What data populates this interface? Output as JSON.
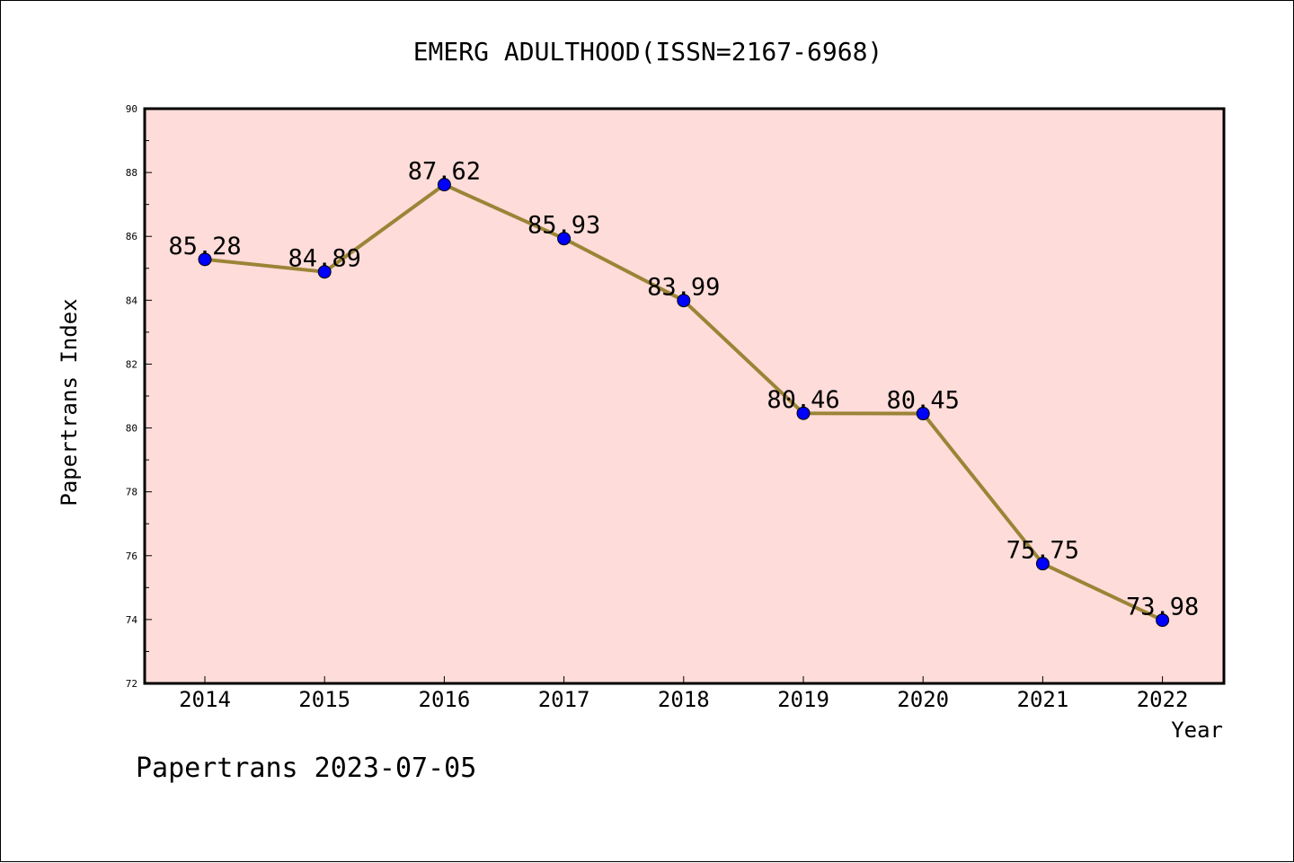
{
  "chart_data": {
    "type": "line",
    "title": "EMERG ADULTHOOD(ISSN=2167-6968)",
    "xlabel": "Year",
    "ylabel": "Papertrans Index",
    "categories": [
      "2014",
      "2015",
      "2016",
      "2017",
      "2018",
      "2019",
      "2020",
      "2021",
      "2022"
    ],
    "series": [
      {
        "values": [
          85.28,
          84.89,
          87.62,
          85.93,
          83.99,
          80.46,
          80.45,
          75.75,
          73.98
        ],
        "labels": [
          "85.28",
          "84.89",
          "87.62",
          "85.93",
          "83.99",
          "80.46",
          "80.45",
          "75.75",
          "73.98"
        ]
      }
    ],
    "ylim": [
      72,
      90
    ],
    "yticks": [
      "72",
      "74",
      "76",
      "78",
      "80",
      "82",
      "84",
      "86",
      "88",
      "90"
    ],
    "grid": false,
    "footer": "Papertrans 2023-07-05",
    "colors": {
      "plot_background": "#fddcd9",
      "line": "#9b8436",
      "marker": "#0000ff"
    }
  }
}
